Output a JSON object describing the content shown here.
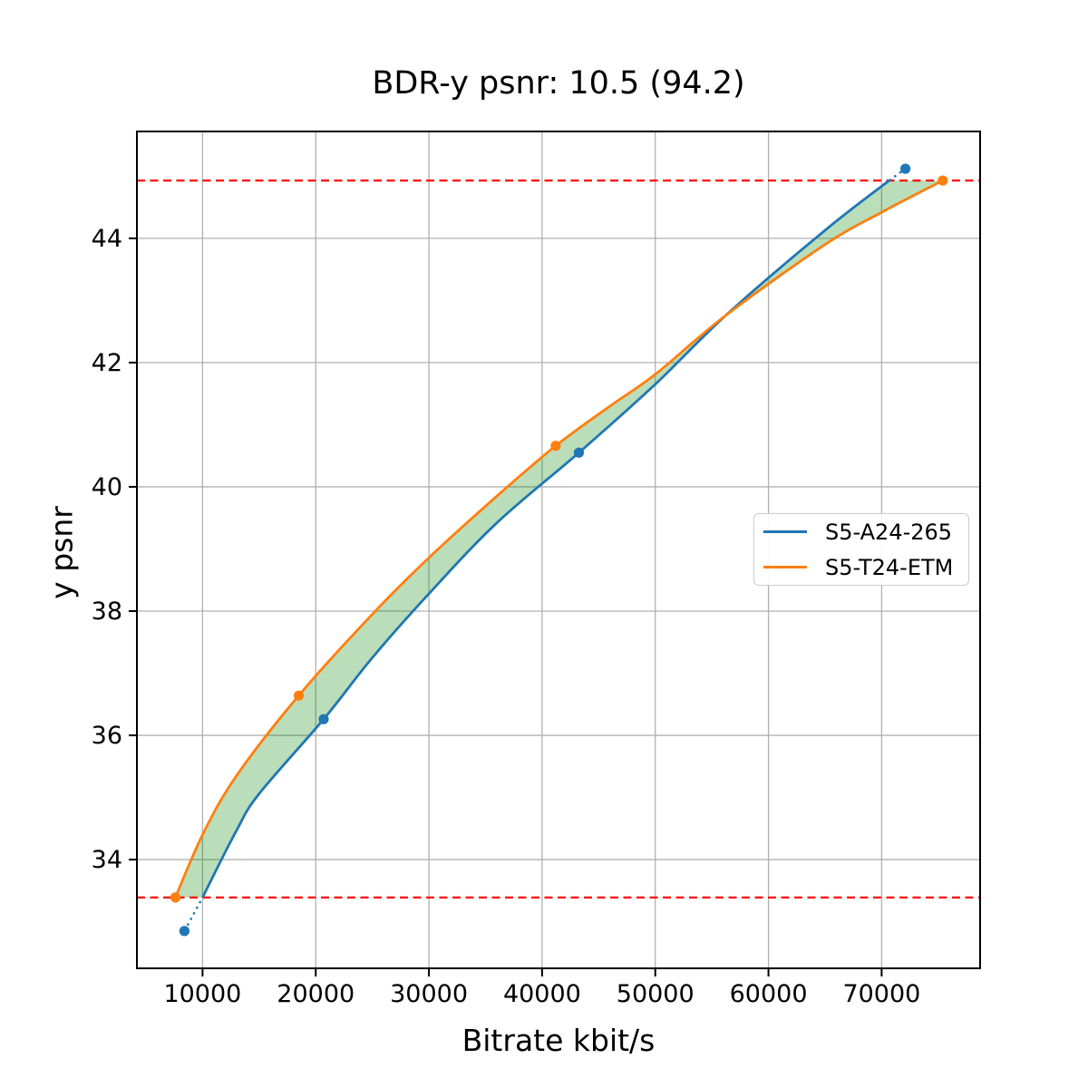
{
  "title": "BDR-y psnr: 10.5 (94.2)",
  "axes": {
    "xlabel": "Bitrate kbit/s",
    "ylabel": "y psnr"
  },
  "legend": {
    "items": [
      {
        "label": "S5-A24-265",
        "color": "#1f77b4"
      },
      {
        "label": "S5-T24-ETM",
        "color": "#ff7f0e"
      }
    ]
  },
  "colors": {
    "blue_series": "#1f77b4",
    "orange_series": "#ff7f0e",
    "bd_line_red": "#ff0000",
    "grid": "#b0b0b0",
    "fill_between": "rgba(0,128,0,0.27)",
    "spine": "#000000"
  },
  "chart_data": {
    "type": "line",
    "title": "BDR-y psnr: 10.5 (94.2)",
    "xlabel": "Bitrate kbit/s",
    "ylabel": "y psnr",
    "xlim": [
      4200,
      78700
    ],
    "ylim": [
      32.25,
      45.72
    ],
    "x_ticks": [
      10000,
      20000,
      30000,
      40000,
      50000,
      60000,
      70000
    ],
    "y_ticks": [
      34,
      36,
      38,
      40,
      42,
      44
    ],
    "grid": true,
    "legend_position": "center right",
    "bd_overlap_hlines": {
      "values": [
        33.39,
        44.93
      ],
      "color": "#ff0000",
      "style": "dashed"
    },
    "series": [
      {
        "name": "S5-A24-265",
        "color": "#1f77b4",
        "data_points": [
          [
            8400,
            32.85
          ],
          [
            20700,
            36.26
          ],
          [
            43250,
            40.55
          ],
          [
            72100,
            45.12
          ]
        ],
        "fit_curve": [
          [
            10000,
            33.39
          ],
          [
            13000,
            34.47
          ],
          [
            15000,
            35.06
          ],
          [
            20700,
            36.26
          ],
          [
            25000,
            37.25
          ],
          [
            30000,
            38.28
          ],
          [
            36000,
            39.42
          ],
          [
            43250,
            40.55
          ],
          [
            50000,
            41.65
          ],
          [
            56230,
            42.76
          ],
          [
            65000,
            44.13
          ],
          [
            70660,
            44.93
          ]
        ],
        "dotted_extensions": [
          [
            [
              8400,
              32.85
            ],
            [
              10000,
              33.39
            ]
          ],
          [
            [
              70660,
              44.93
            ],
            [
              72100,
              45.12
            ]
          ]
        ]
      },
      {
        "name": "S5-T24-ETM",
        "color": "#ff7f0e",
        "data_points": [
          [
            7600,
            33.39
          ],
          [
            18500,
            36.64
          ],
          [
            41200,
            40.66
          ],
          [
            75400,
            44.93
          ]
        ],
        "fit_curve": [
          [
            7600,
            33.39
          ],
          [
            10000,
            34.4
          ],
          [
            13000,
            35.35
          ],
          [
            18500,
            36.64
          ],
          [
            25000,
            37.95
          ],
          [
            30000,
            38.86
          ],
          [
            36000,
            39.85
          ],
          [
            41200,
            40.66
          ],
          [
            46000,
            41.3
          ],
          [
            50000,
            41.81
          ],
          [
            56230,
            42.76
          ],
          [
            65000,
            43.9
          ],
          [
            70000,
            44.42
          ],
          [
            75400,
            44.93
          ]
        ],
        "dotted_extensions": []
      }
    ],
    "fill_between": {
      "between": [
        "S5-A24-265",
        "S5-T24-ETM"
      ],
      "color": "rgba(0,128,0,0.27)",
      "clip_y": [
        33.39,
        44.93
      ]
    },
    "crossing_point": [
      56230,
      42.76
    ],
    "bdr_value": "10.5",
    "bdr_overlap_percent": "94.2"
  }
}
